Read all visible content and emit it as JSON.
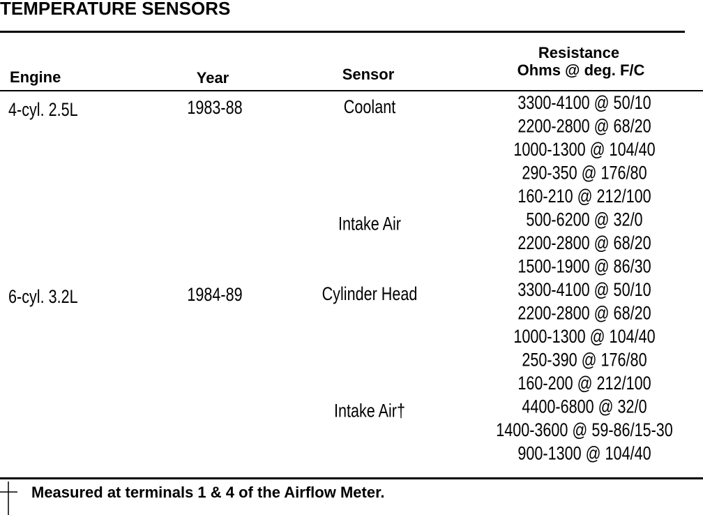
{
  "title": "TEMPERATURE SENSORS",
  "header": {
    "engine": "Engine",
    "year": "Year",
    "sensor": "Sensor",
    "resistance": [
      "Resistance",
      "Ohms @ deg. F/C"
    ]
  },
  "engines": [
    {
      "engine": "4-cyl. 2.5L",
      "year": "1983-88",
      "sensors": [
        {
          "name": "Coolant",
          "resistance": [
            "3300-4100 @ 50/10",
            "2200-2800 @ 68/20",
            "1000-1300 @ 104/40",
            "290-350 @ 176/80",
            "160-210 @ 212/100"
          ]
        },
        {
          "name": "Intake Air",
          "resistance": [
            "500-6200 @ 32/0",
            "2200-2800 @ 68/20",
            "1500-1900 @ 86/30"
          ]
        }
      ]
    },
    {
      "engine": "6-cyl. 3.2L",
      "year": "1984-89",
      "sensors": [
        {
          "name": "Cylinder Head",
          "resistance": [
            "3300-4100 @ 50/10",
            "2200-2800 @ 68/20",
            "1000-1300 @ 104/40",
            "250-390 @ 176/80",
            "160-200 @ 212/100"
          ]
        },
        {
          "name": "Intake Air†",
          "resistance": [
            "4400-6800 @ 32/0",
            "1400-3600 @ 59-86/15-30",
            "900-1300 @ 104/40"
          ]
        }
      ]
    }
  ],
  "footnote": "Measured at terminals 1 & 4 of the Airflow Meter."
}
